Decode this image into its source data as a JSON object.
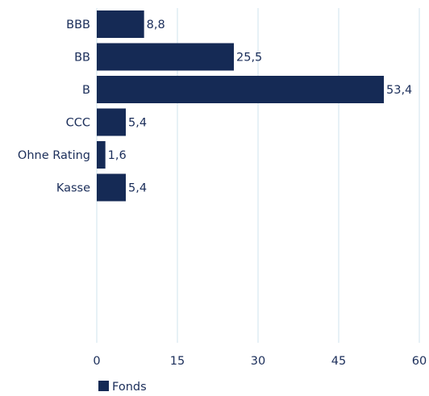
{
  "chart_data": {
    "type": "bar",
    "orientation": "horizontal",
    "categories": [
      "BBB",
      "BB",
      "B",
      "CCC",
      "Ohne Rating",
      "Kasse"
    ],
    "series": [
      {
        "name": "Fonds",
        "values": [
          8.8,
          25.5,
          53.4,
          5.4,
          1.6,
          5.4
        ],
        "value_labels": [
          "8,8",
          "25,5",
          "53,4",
          "5,4",
          "1,6",
          "5,4"
        ],
        "color": "#152a55"
      }
    ],
    "xlim": [
      0,
      60
    ],
    "x_ticks": [
      0,
      15,
      30,
      45,
      60
    ],
    "x_tick_labels": [
      "0",
      "15",
      "30",
      "45",
      "60"
    ],
    "grid": "vertical",
    "gridline_color": "#cfe3ee",
    "legend_position": "bottom-left",
    "legend_label": "Fonds"
  }
}
